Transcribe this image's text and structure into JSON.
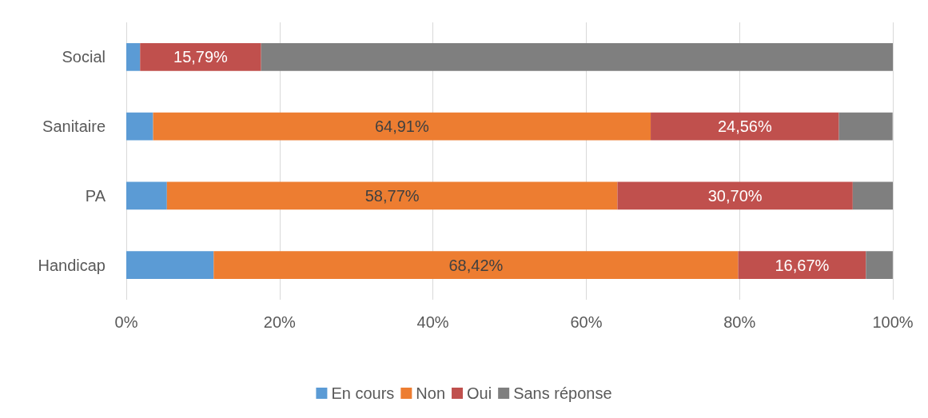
{
  "chart_data": {
    "type": "bar",
    "orientation": "horizontal",
    "stacked": true,
    "categories": [
      "Social",
      "Sanitaire",
      "PA",
      "Handicap"
    ],
    "series": [
      {
        "name": "En cours",
        "color": "#5b9bd5",
        "values": [
          1.8,
          3.5,
          5.3,
          11.4
        ]
      },
      {
        "name": "Non",
        "color": "#ed7d31",
        "values": [
          0,
          64.91,
          58.77,
          68.42
        ],
        "value_labels": [
          null,
          "64,91%",
          "58,77%",
          "68,42%"
        ]
      },
      {
        "name": "Oui",
        "color": "#c0504d",
        "values": [
          15.79,
          24.56,
          30.7,
          16.67
        ],
        "value_labels": [
          "15,79%",
          "24,56%",
          "30,70%",
          "16,67%"
        ]
      },
      {
        "name": "Sans réponse",
        "color": "#7f7f7f",
        "values": [
          82.5,
          7,
          5.3,
          3.5
        ]
      }
    ],
    "xlim": [
      0,
      100
    ],
    "xticks": [
      {
        "value": 0,
        "label": "0%"
      },
      {
        "value": 20,
        "label": "20%"
      },
      {
        "value": 40,
        "label": "40%"
      },
      {
        "value": 60,
        "label": "60%"
      },
      {
        "value": 80,
        "label": "80%"
      },
      {
        "value": 100,
        "label": "100%"
      }
    ],
    "grid": "x",
    "legend": "bottom"
  }
}
